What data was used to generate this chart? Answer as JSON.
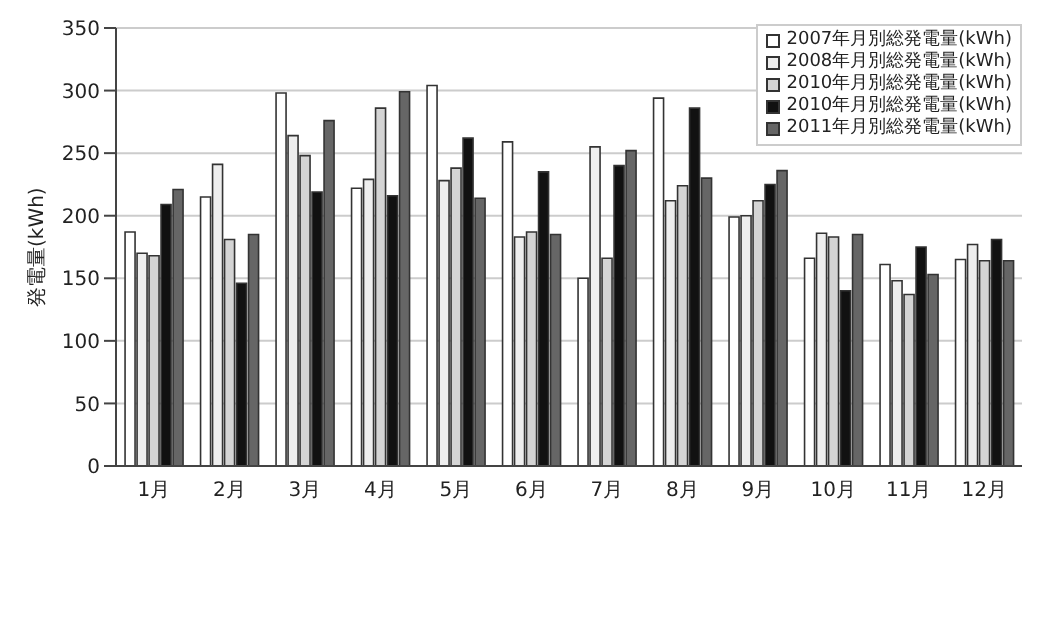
{
  "chart_data": {
    "type": "bar",
    "ylabel": "発電量(kWh)",
    "categories": [
      "1月",
      "2月",
      "3月",
      "4月",
      "5月",
      "6月",
      "7月",
      "8月",
      "9月",
      "10月",
      "11月",
      "12月"
    ],
    "series": [
      {
        "name": "2007年月別総発電量(kWh)",
        "color": "#ffffff",
        "values": [
          187,
          215,
          298,
          222,
          304,
          259,
          150,
          294,
          199,
          166,
          161,
          165
        ]
      },
      {
        "name": "2008年月別総発電量(kWh)",
        "color": "#eeeeee",
        "values": [
          170,
          241,
          264,
          229,
          228,
          183,
          255,
          212,
          200,
          186,
          148,
          177
        ]
      },
      {
        "name": "2010年月別総発電量(kWh)",
        "color": "#d4d4d4",
        "values": [
          168,
          181,
          248,
          286,
          238,
          187,
          166,
          224,
          212,
          183,
          137,
          164
        ]
      },
      {
        "name": "2010年月別総発電量(kWh)",
        "color": "#111111",
        "values": [
          209,
          146,
          219,
          216,
          262,
          235,
          240,
          286,
          225,
          140,
          175,
          181
        ]
      },
      {
        "name": "2011年月別総発電量(kWh)",
        "color": "#666666",
        "values": [
          221,
          185,
          276,
          299,
          214,
          185,
          252,
          230,
          236,
          185,
          153,
          164
        ]
      }
    ],
    "ylim": [
      0,
      350
    ],
    "yticks": [
      0,
      50,
      100,
      150,
      200,
      250,
      300,
      350
    ],
    "grid": "y",
    "legend": "top right"
  }
}
